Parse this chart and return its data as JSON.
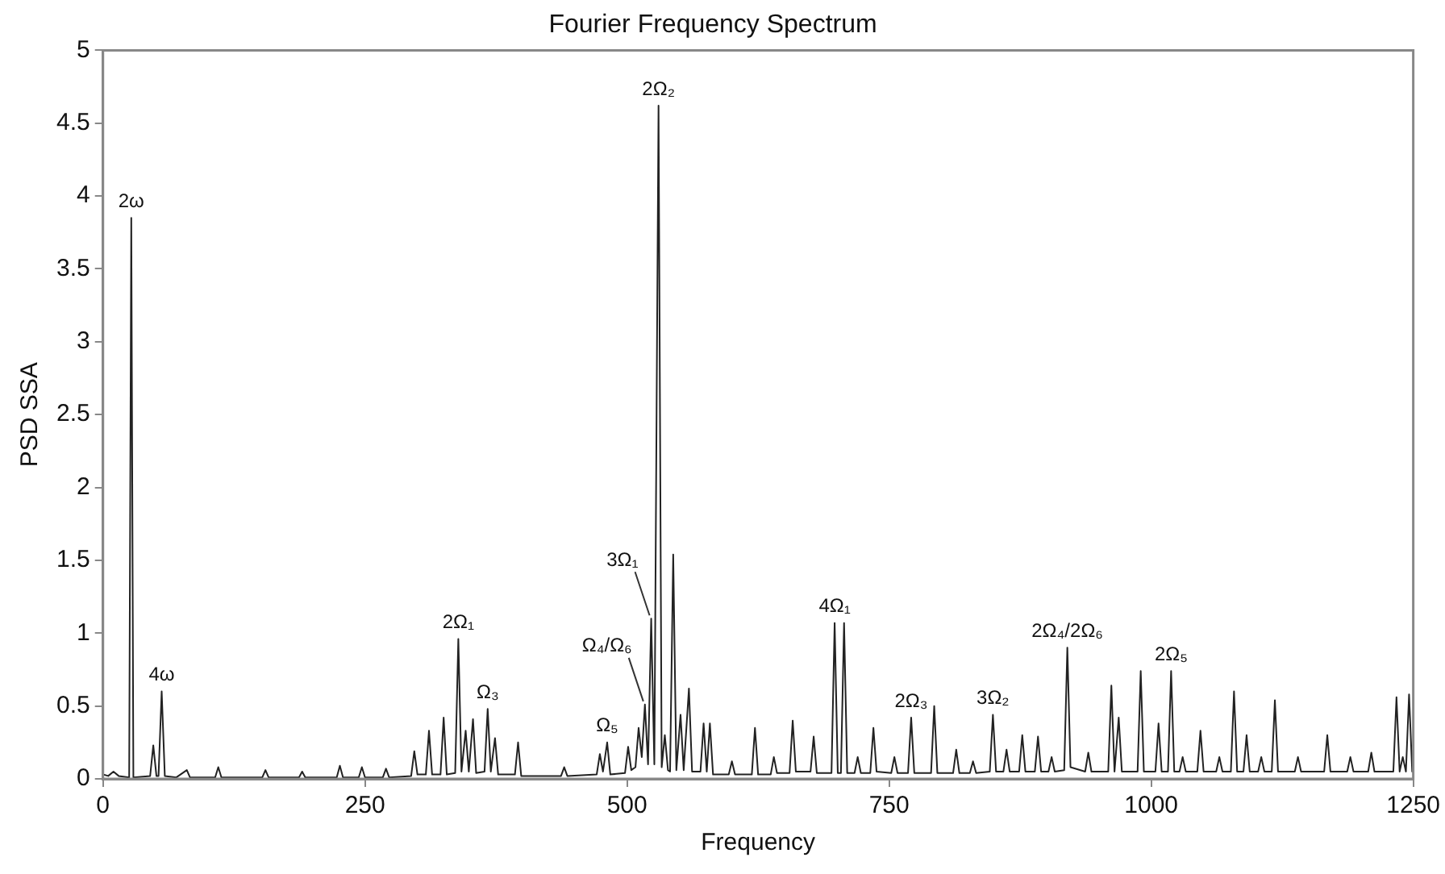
{
  "chart_data": {
    "type": "line",
    "title": "Fourier Frequency Spectrum",
    "xlabel": "Frequency",
    "ylabel": "PSD SSA",
    "xlim": [
      0,
      1250
    ],
    "xticks": [
      0,
      250,
      500,
      750,
      1000,
      1250
    ],
    "ylim": [
      0,
      5
    ],
    "yticks": [
      0,
      0.5,
      1,
      1.5,
      2,
      2.5,
      3,
      3.5,
      4,
      4.5,
      5
    ],
    "marker": "none",
    "line_style": "solid",
    "series": [
      {
        "color": "#222222",
        "x": [
          0,
          5,
          10,
          15,
          25,
          27,
          29,
          45,
          48,
          51,
          53,
          56,
          59,
          70,
          80,
          83,
          107,
          110,
          113,
          152,
          155,
          158,
          187,
          190,
          193,
          223,
          226,
          229,
          244,
          247,
          250,
          267,
          270,
          273,
          294,
          297,
          300,
          308,
          311,
          314,
          322,
          325,
          328,
          336,
          339,
          342,
          346,
          349,
          353,
          356,
          364,
          367,
          370,
          374,
          377,
          393,
          396,
          399,
          437,
          440,
          443,
          471,
          474,
          477,
          481,
          484,
          498,
          501,
          504,
          508,
          511,
          514,
          517,
          520,
          523,
          526,
          530,
          533,
          536,
          539,
          541,
          544,
          547,
          551,
          554,
          559,
          562,
          570,
          573,
          576,
          579,
          582,
          597,
          600,
          603,
          619,
          622,
          625,
          637,
          640,
          643,
          655,
          658,
          661,
          675,
          678,
          681,
          695,
          698,
          701,
          704,
          707,
          710,
          717,
          720,
          723,
          732,
          735,
          738,
          752,
          755,
          758,
          768,
          771,
          774,
          790,
          793,
          796,
          811,
          814,
          817,
          827,
          830,
          833,
          846,
          849,
          852,
          859,
          862,
          865,
          874,
          877,
          880,
          889,
          892,
          895,
          902,
          905,
          908,
          917,
          920,
          923,
          937,
          940,
          943,
          959,
          962,
          965,
          969,
          972,
          987,
          990,
          993,
          1004,
          1007,
          1010,
          1016,
          1019,
          1022,
          1027,
          1030,
          1033,
          1044,
          1047,
          1050,
          1062,
          1065,
          1068,
          1076,
          1079,
          1082,
          1088,
          1091,
          1094,
          1102,
          1105,
          1108,
          1115,
          1118,
          1121,
          1137,
          1140,
          1143,
          1165,
          1168,
          1171,
          1187,
          1190,
          1193,
          1207,
          1210,
          1213,
          1231,
          1234,
          1237,
          1240,
          1243,
          1246,
          1249,
          1250
        ],
        "values": [
          0.03,
          0.02,
          0.05,
          0.02,
          0.01,
          3.85,
          0.01,
          0.02,
          0.23,
          0.02,
          0.02,
          0.6,
          0.02,
          0.01,
          0.06,
          0.01,
          0.01,
          0.08,
          0.01,
          0.01,
          0.06,
          0.01,
          0.01,
          0.05,
          0.01,
          0.01,
          0.09,
          0.01,
          0.01,
          0.08,
          0.01,
          0.01,
          0.07,
          0.01,
          0.02,
          0.19,
          0.03,
          0.03,
          0.33,
          0.03,
          0.03,
          0.42,
          0.03,
          0.04,
          0.96,
          0.05,
          0.33,
          0.05,
          0.41,
          0.04,
          0.05,
          0.48,
          0.05,
          0.28,
          0.03,
          0.03,
          0.25,
          0.02,
          0.02,
          0.08,
          0.02,
          0.03,
          0.17,
          0.05,
          0.25,
          0.03,
          0.04,
          0.22,
          0.06,
          0.08,
          0.35,
          0.15,
          0.51,
          0.1,
          1.1,
          0.1,
          4.62,
          0.08,
          0.3,
          0.06,
          0.05,
          1.54,
          0.06,
          0.44,
          0.06,
          0.62,
          0.05,
          0.05,
          0.38,
          0.05,
          0.38,
          0.03,
          0.03,
          0.12,
          0.03,
          0.03,
          0.35,
          0.03,
          0.03,
          0.15,
          0.04,
          0.04,
          0.4,
          0.05,
          0.05,
          0.29,
          0.04,
          0.04,
          1.07,
          0.04,
          0.04,
          1.07,
          0.04,
          0.04,
          0.15,
          0.04,
          0.04,
          0.35,
          0.05,
          0.04,
          0.15,
          0.04,
          0.04,
          0.42,
          0.04,
          0.04,
          0.5,
          0.04,
          0.04,
          0.2,
          0.04,
          0.04,
          0.12,
          0.04,
          0.05,
          0.44,
          0.05,
          0.05,
          0.2,
          0.05,
          0.05,
          0.3,
          0.05,
          0.05,
          0.29,
          0.05,
          0.05,
          0.15,
          0.05,
          0.06,
          0.9,
          0.08,
          0.05,
          0.18,
          0.05,
          0.05,
          0.64,
          0.05,
          0.42,
          0.05,
          0.05,
          0.74,
          0.05,
          0.05,
          0.38,
          0.05,
          0.05,
          0.74,
          0.05,
          0.05,
          0.15,
          0.05,
          0.05,
          0.33,
          0.05,
          0.05,
          0.15,
          0.05,
          0.05,
          0.6,
          0.05,
          0.05,
          0.3,
          0.05,
          0.05,
          0.15,
          0.05,
          0.05,
          0.54,
          0.05,
          0.05,
          0.15,
          0.05,
          0.05,
          0.3,
          0.05,
          0.05,
          0.15,
          0.05,
          0.05,
          0.18,
          0.05,
          0.05,
          0.56,
          0.05,
          0.15,
          0.05,
          0.58,
          0.05,
          0.2
        ]
      }
    ],
    "annotations": [
      {
        "text": "2ω",
        "x": 27,
        "y": 3.85
      },
      {
        "text": "4ω",
        "x": 56,
        "y": 0.6
      },
      {
        "text": "2Ω₁",
        "x": 339,
        "y": 0.96
      },
      {
        "text": "Ω₃",
        "x": 367,
        "y": 0.48
      },
      {
        "text": "Ω₅",
        "x": 481,
        "y": 0.25
      },
      {
        "text": "Ω₄/Ω₆",
        "x": 517,
        "y": 0.51
      },
      {
        "text": "3Ω₁",
        "x": 523,
        "y": 1.1
      },
      {
        "text": "2Ω₂",
        "x": 530,
        "y": 4.62
      },
      {
        "text": "4Ω₁",
        "x": 698,
        "y": 1.07
      },
      {
        "text": "2Ω₃",
        "x": 771,
        "y": 0.42
      },
      {
        "text": "3Ω₂",
        "x": 849,
        "y": 0.44
      },
      {
        "text": "2Ω₄/2Ω₆",
        "x": 920,
        "y": 0.9
      },
      {
        "text": "2Ω₅",
        "x": 1019,
        "y": 0.74
      }
    ]
  }
}
